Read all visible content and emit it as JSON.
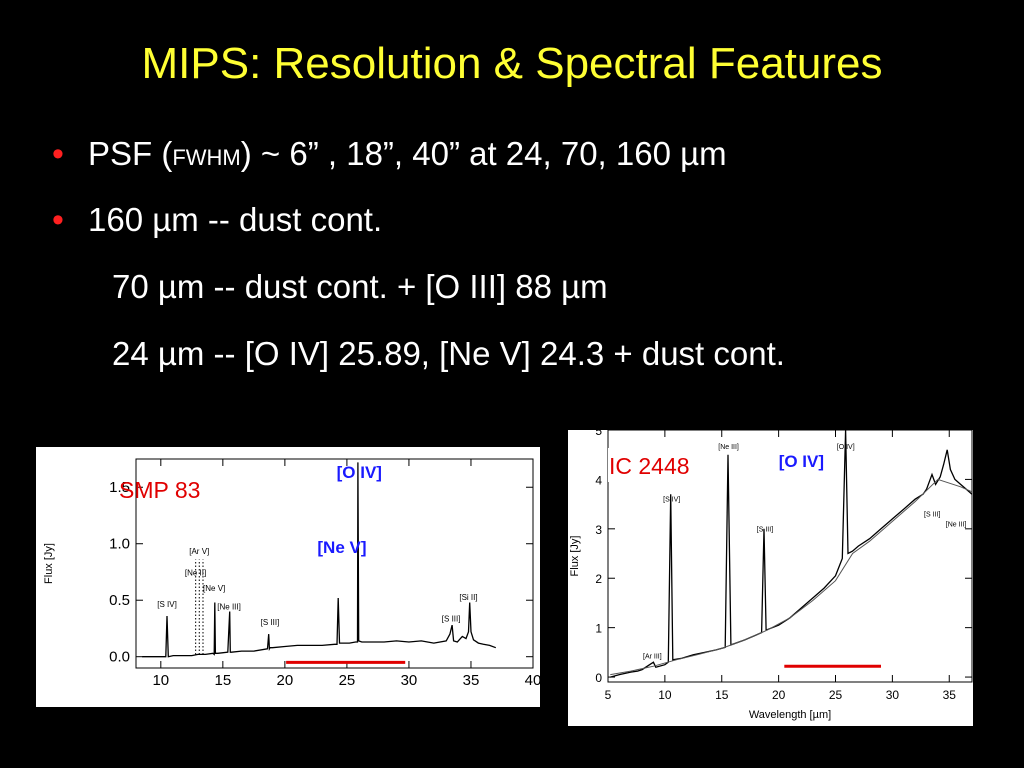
{
  "title": "MIPS: Resolution & Spectral Features",
  "bullets": [
    {
      "pre": "PSF  (",
      "small": "FWHM",
      "post": ")  ~  6” , 18”, 40” at  24, 70, 160 µm"
    },
    {
      "text": "160 µm  --  dust cont."
    },
    {
      "text": "70 µm  --  dust cont. + [O III] 88 µm"
    },
    {
      "text": "24 µm  --  [O IV] 25.89, [Ne V] 24.3 + dust cont."
    }
  ],
  "colors": {
    "title": "#ffff33",
    "bullet": "#ff2020",
    "object_label": "#e00000",
    "line_label": "#1a1aff",
    "band_bar": "#e00000"
  },
  "chart_data": [
    {
      "type": "line",
      "object_label": "SMP 83",
      "ylabel": "Flux  [Jy]",
      "xlabel": "",
      "xlim": [
        8,
        40
      ],
      "ylim": [
        -0.1,
        1.75
      ],
      "xticks": [
        10,
        15,
        20,
        25,
        30,
        35,
        40
      ],
      "yticks": [
        0.0,
        0.5,
        1.0,
        1.5
      ],
      "ytick_labels": [
        "0.0",
        "0.5",
        "1.0",
        "1.5"
      ],
      "series": [
        {
          "x": [
            8.5,
            10.0,
            10.4,
            10.5,
            10.6,
            11.0,
            12.5,
            13.0,
            13.6,
            14.2,
            14.3,
            14.35,
            14.4,
            14.6,
            15.4,
            15.55,
            15.6,
            15.7,
            16.5,
            17.5,
            18.6,
            18.7,
            18.75,
            18.8,
            19.0,
            20.0,
            21.0,
            22.0,
            23.0,
            24.0,
            24.2,
            24.3,
            24.4,
            24.6,
            25.2,
            25.7,
            25.85,
            25.89,
            25.95,
            26.2,
            27.0,
            28.0,
            29.0,
            30.0,
            31.0,
            32.0,
            33.0,
            33.3,
            33.48,
            33.6,
            33.9,
            34.3,
            34.6,
            34.8,
            34.9,
            35.0,
            35.2,
            35.6,
            36.0,
            36.5,
            37.0
          ],
          "y": [
            0.0,
            0.0,
            0.0,
            0.36,
            0.0,
            0.01,
            0.01,
            0.02,
            0.02,
            0.03,
            0.02,
            0.48,
            0.03,
            0.03,
            0.04,
            0.4,
            0.04,
            0.04,
            0.05,
            0.05,
            0.07,
            0.2,
            0.07,
            0.08,
            0.08,
            0.09,
            0.1,
            0.1,
            0.1,
            0.11,
            0.11,
            0.52,
            0.12,
            0.12,
            0.12,
            0.13,
            0.13,
            1.72,
            0.14,
            0.13,
            0.13,
            0.13,
            0.14,
            0.13,
            0.14,
            0.12,
            0.14,
            0.2,
            0.28,
            0.14,
            0.13,
            0.18,
            0.16,
            0.22,
            0.48,
            0.22,
            0.15,
            0.12,
            0.11,
            0.1,
            0.08
          ]
        }
      ],
      "line_labels": [
        {
          "text": "[S IV]",
          "x": 10.5,
          "y": 0.44,
          "color": "black"
        },
        {
          "text": "[Ne II]",
          "x": 12.8,
          "y": 0.72,
          "color": "black"
        },
        {
          "text": "[Ar V]",
          "x": 13.1,
          "y": 0.91,
          "color": "black"
        },
        {
          "text": "[Ne V]",
          "x": 14.3,
          "y": 0.58,
          "color": "black"
        },
        {
          "text": "[Ne III]",
          "x": 15.5,
          "y": 0.42,
          "color": "black"
        },
        {
          "text": "[S III]",
          "x": 18.8,
          "y": 0.28,
          "color": "black"
        },
        {
          "text": "[O IV]",
          "x": 26.0,
          "y": 1.58,
          "color": "blue"
        },
        {
          "text": "[Ne V]",
          "x": 24.6,
          "y": 0.92,
          "color": "blue"
        },
        {
          "text": "[S III]",
          "x": 33.4,
          "y": 0.31,
          "color": "black"
        },
        {
          "text": "[Si II]",
          "x": 34.8,
          "y": 0.5,
          "color": "black"
        }
      ],
      "dotted_lines_x": [
        12.81,
        13.1,
        13.4
      ],
      "band": [
        20.1,
        29.7
      ]
    },
    {
      "type": "line",
      "object_label": "IC 2448",
      "ylabel": "Flux  [Jy]",
      "xlabel": "Wavelength  [µm]",
      "xlim": [
        5,
        37
      ],
      "ylim": [
        -0.1,
        5.0
      ],
      "xticks": [
        5,
        10,
        15,
        20,
        25,
        30,
        35
      ],
      "yticks": [
        0,
        1,
        2,
        3,
        4,
        5
      ],
      "ytick_labels": [
        "0",
        "1",
        "2",
        "3",
        "4",
        "5"
      ],
      "series": [
        {
          "name": "",
          "x": [
            5.2,
            6.0,
            7.0,
            7.6,
            8.0,
            8.99,
            9.2,
            10.0,
            10.3,
            10.51,
            10.7,
            11.5,
            12.5,
            13.5,
            14.5,
            15.3,
            15.55,
            15.8,
            17.0,
            18.0,
            18.5,
            18.71,
            18.9,
            20.0,
            21.0,
            22.0,
            23.0,
            24.0,
            25.0,
            25.6,
            25.89,
            26.1,
            26.5,
            27.0,
            28.0,
            29.0,
            30.0,
            31.0,
            32.0,
            32.7,
            33.0,
            33.48,
            33.8,
            34.2,
            34.5,
            34.82,
            35.1,
            35.5,
            36.0,
            36.5,
            37.0
          ],
          "y": [
            0.0,
            0.05,
            0.1,
            0.12,
            0.15,
            0.3,
            0.2,
            0.25,
            0.3,
            3.7,
            0.35,
            0.38,
            0.45,
            0.5,
            0.55,
            0.6,
            4.5,
            0.65,
            0.75,
            0.85,
            0.9,
            3.0,
            0.95,
            1.05,
            1.2,
            1.4,
            1.6,
            1.8,
            2.05,
            2.4,
            5.0,
            2.5,
            2.55,
            2.65,
            2.8,
            3.0,
            3.2,
            3.4,
            3.6,
            3.7,
            3.8,
            4.1,
            3.9,
            4.05,
            4.3,
            4.6,
            4.2,
            4.0,
            3.9,
            3.8,
            3.7
          ]
        },
        {
          "name": "",
          "x": [
            5.2,
            7.0,
            9.0,
            11.0,
            13.0,
            15.0,
            17.0,
            19.0,
            21.0,
            23.0,
            25.0,
            26.5,
            28.0,
            30.0,
            32.0,
            34.0,
            36.0,
            37.0
          ],
          "y": [
            0.05,
            0.12,
            0.22,
            0.35,
            0.46,
            0.58,
            0.75,
            0.95,
            1.2,
            1.55,
            1.95,
            2.5,
            2.75,
            3.15,
            3.55,
            4.0,
            3.85,
            3.75
          ]
        }
      ],
      "line_labels": [
        {
          "text": "[Ar III]",
          "x": 8.9,
          "y": 0.38,
          "color": "black"
        },
        {
          "text": "[S IV]",
          "x": 10.6,
          "y": 3.55,
          "color": "black"
        },
        {
          "text": "[Ne III]",
          "x": 15.6,
          "y": 4.62,
          "color": "black"
        },
        {
          "text": "[S III]",
          "x": 18.8,
          "y": 2.95,
          "color": "black"
        },
        {
          "text": "[O IV]",
          "x": 25.9,
          "y": 4.62,
          "color": "black"
        },
        {
          "text": "[O IV]",
          "x": 22.0,
          "y": 4.25,
          "color": "blue"
        },
        {
          "text": "[S III]",
          "x": 33.5,
          "y": 3.25,
          "color": "black"
        },
        {
          "text": "[Ne III]",
          "x": 35.6,
          "y": 3.05,
          "color": "black"
        }
      ],
      "band": [
        20.5,
        29.0
      ]
    }
  ]
}
